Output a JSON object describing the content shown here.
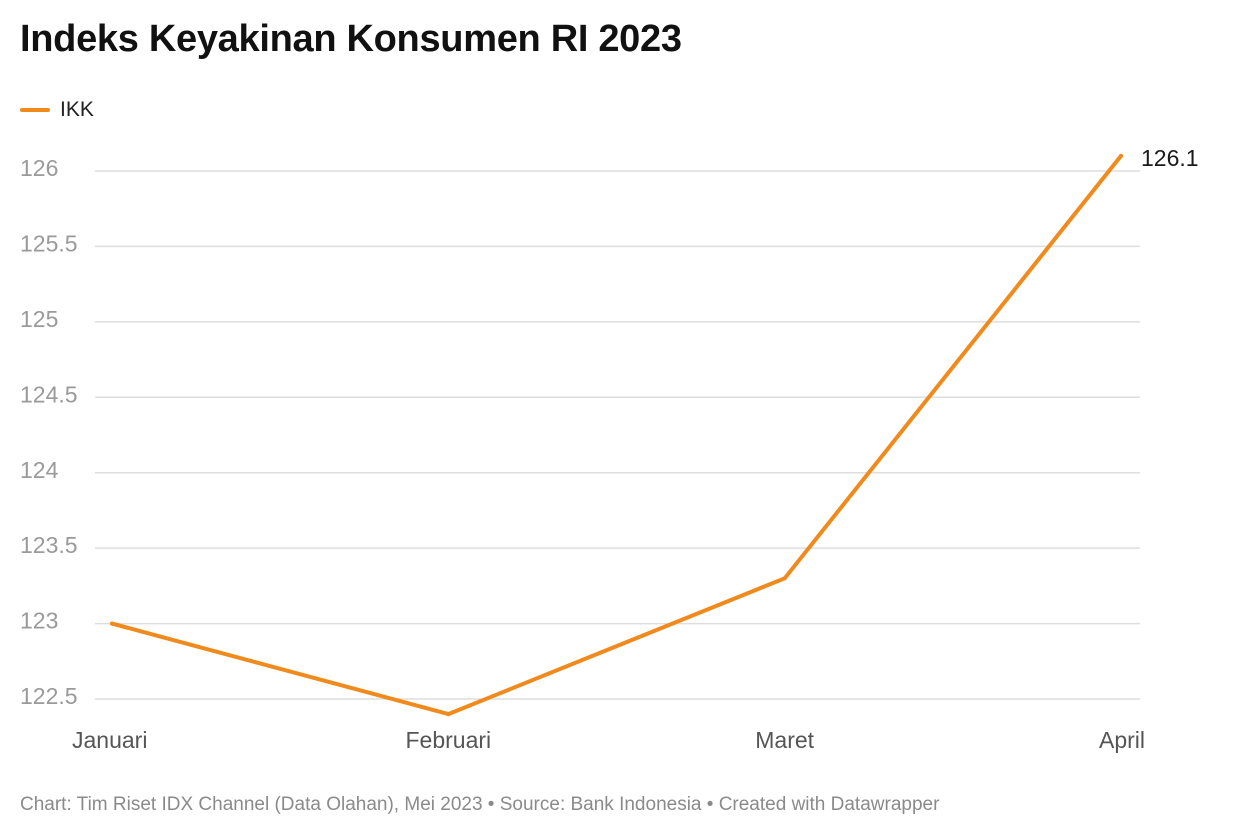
{
  "title": "Indeks Keyakinan Konsumen RI 2023",
  "footer": "Chart: Tim Riset IDX Channel (Data Olahan), Mei 2023 • Source: Bank Indonesia • Created with Datawrapper",
  "colors": {
    "series": "#f08a1c",
    "grid": "#dedede",
    "tick_label": "#9a9a9a",
    "category_label": "#555555",
    "value_label": "#1a1a1a"
  },
  "chart_data": {
    "type": "line",
    "title": "Indeks Keyakinan Konsumen RI 2023",
    "xlabel": "",
    "ylabel": "",
    "categories": [
      "Januari",
      "Februari",
      "Maret",
      "April"
    ],
    "series": [
      {
        "name": "IKK",
        "values": [
          123.0,
          122.4,
          123.3,
          126.1
        ]
      }
    ],
    "ylim": [
      122.5,
      126.1
    ],
    "yticks": [
      122.5,
      123,
      123.5,
      124,
      124.5,
      125,
      125.5,
      126
    ],
    "ytick_labels": [
      "122.5",
      "123",
      "123.5",
      "124",
      "124.5",
      "125",
      "125.5",
      "126"
    ],
    "end_label": "126.1",
    "grid": true,
    "legend": "top-left"
  }
}
